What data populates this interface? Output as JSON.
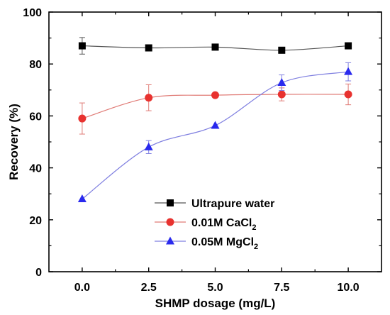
{
  "chart_data": {
    "type": "line",
    "xlabel": "SHMP dosage (mg/L)",
    "ylabel": "Recovery (%)",
    "xlim": [
      -1.25,
      11.25
    ],
    "ylim": [
      0,
      100
    ],
    "x_ticks": [
      "0.0",
      "2.5",
      "5.0",
      "7.5",
      "10.0"
    ],
    "y_ticks": [
      "0",
      "20",
      "40",
      "60",
      "80",
      "100"
    ],
    "x": [
      0,
      2.5,
      5,
      7.5,
      10
    ],
    "legend_position": "bottom-center",
    "series": [
      {
        "name": "Ultrapure water",
        "marker": "square",
        "color": "#000000",
        "line_color": "#555555",
        "values": [
          87,
          86.2,
          86.5,
          85.3,
          87
        ],
        "errors": [
          3.2,
          0,
          0,
          0,
          0
        ]
      },
      {
        "name": "0.01M CaCl",
        "name_subscript": "2",
        "marker": "circle",
        "color": "#e8322f",
        "line_color": "#e07b76",
        "values": [
          59,
          67,
          68,
          68.3,
          68.3
        ],
        "errors": [
          6,
          5,
          0,
          2.5,
          4
        ]
      },
      {
        "name": "0.05M MgCl",
        "name_subscript": "2",
        "marker": "triangle",
        "color": "#2a2aee",
        "line_color": "#7f7fe0",
        "values": [
          28,
          48,
          56.3,
          72.8,
          77
        ],
        "errors": [
          0,
          2.5,
          0,
          3,
          3.5
        ]
      }
    ]
  }
}
